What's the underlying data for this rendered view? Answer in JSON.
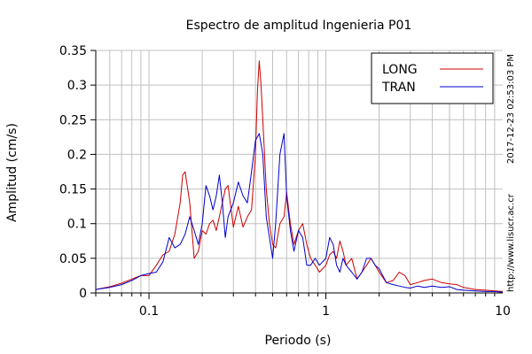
{
  "chart_data": {
    "type": "line",
    "title": "Espectro de amplitud Ingenieria P01",
    "xlabel": "Periodo (s)",
    "ylabel": "Amplitud (cm/s)",
    "xscale": "log",
    "xlim": [
      0.05,
      10
    ],
    "ylim": [
      0,
      0.35
    ],
    "xticks": [
      0.1,
      1,
      10
    ],
    "xtick_labels": [
      "0.1",
      "1",
      "10"
    ],
    "yticks": [
      0,
      0.05,
      0.1,
      0.15,
      0.2,
      0.25,
      0.3,
      0.35
    ],
    "ytick_labels": [
      "0",
      "0.05",
      "0.1",
      "0.15",
      "0.2",
      "0.25",
      "0.3",
      "0.35"
    ],
    "grid": true,
    "legend_position": "top-right",
    "series": [
      {
        "name": "LONG",
        "color": "#cc0000",
        "x": [
          0.05,
          0.06,
          0.07,
          0.08,
          0.09,
          0.1,
          0.11,
          0.12,
          0.13,
          0.14,
          0.15,
          0.155,
          0.16,
          0.17,
          0.18,
          0.19,
          0.2,
          0.21,
          0.22,
          0.23,
          0.24,
          0.25,
          0.26,
          0.27,
          0.28,
          0.3,
          0.32,
          0.34,
          0.36,
          0.38,
          0.4,
          0.41,
          0.42,
          0.43,
          0.44,
          0.46,
          0.48,
          0.5,
          0.52,
          0.55,
          0.58,
          0.6,
          0.63,
          0.66,
          0.7,
          0.74,
          0.78,
          0.82,
          0.87,
          0.92,
          1.0,
          1.05,
          1.1,
          1.15,
          1.2,
          1.25,
          1.3,
          1.4,
          1.5,
          1.6,
          1.7,
          1.8,
          1.9,
          2.0,
          2.2,
          2.4,
          2.6,
          2.8,
          3.0,
          3.3,
          3.6,
          4.0,
          4.5,
          5.0,
          5.5,
          6.0,
          7.0,
          8.0,
          9.0,
          10.0
        ],
        "y": [
          0.005,
          0.009,
          0.014,
          0.02,
          0.025,
          0.025,
          0.04,
          0.055,
          0.06,
          0.085,
          0.13,
          0.17,
          0.175,
          0.13,
          0.05,
          0.06,
          0.09,
          0.085,
          0.1,
          0.105,
          0.09,
          0.11,
          0.13,
          0.15,
          0.155,
          0.095,
          0.125,
          0.095,
          0.11,
          0.12,
          0.2,
          0.29,
          0.335,
          0.3,
          0.25,
          0.15,
          0.1,
          0.07,
          0.065,
          0.1,
          0.11,
          0.145,
          0.1,
          0.07,
          0.09,
          0.1,
          0.07,
          0.05,
          0.04,
          0.03,
          0.04,
          0.055,
          0.06,
          0.05,
          0.075,
          0.06,
          0.04,
          0.05,
          0.02,
          0.03,
          0.04,
          0.05,
          0.04,
          0.03,
          0.015,
          0.018,
          0.03,
          0.025,
          0.012,
          0.015,
          0.018,
          0.02,
          0.015,
          0.013,
          0.012,
          0.008,
          0.005,
          0.004,
          0.003,
          0.002
        ]
      },
      {
        "name": "TRAN",
        "color": "#0000cc",
        "x": [
          0.05,
          0.06,
          0.07,
          0.08,
          0.09,
          0.1,
          0.11,
          0.12,
          0.13,
          0.14,
          0.15,
          0.16,
          0.17,
          0.18,
          0.19,
          0.2,
          0.21,
          0.22,
          0.23,
          0.24,
          0.25,
          0.26,
          0.27,
          0.28,
          0.3,
          0.32,
          0.34,
          0.36,
          0.38,
          0.4,
          0.42,
          0.44,
          0.46,
          0.48,
          0.5,
          0.52,
          0.55,
          0.58,
          0.6,
          0.63,
          0.66,
          0.7,
          0.74,
          0.78,
          0.82,
          0.87,
          0.92,
          1.0,
          1.05,
          1.1,
          1.15,
          1.2,
          1.25,
          1.3,
          1.4,
          1.5,
          1.6,
          1.7,
          1.8,
          1.9,
          2.0,
          2.2,
          2.4,
          2.6,
          2.8,
          3.0,
          3.3,
          3.6,
          4.0,
          4.5,
          5.0,
          5.5,
          6.0,
          7.0,
          8.0,
          9.0,
          10.0
        ],
        "y": [
          0.005,
          0.008,
          0.012,
          0.018,
          0.025,
          0.028,
          0.03,
          0.045,
          0.08,
          0.065,
          0.07,
          0.085,
          0.11,
          0.09,
          0.07,
          0.1,
          0.155,
          0.14,
          0.12,
          0.14,
          0.17,
          0.13,
          0.08,
          0.11,
          0.13,
          0.16,
          0.14,
          0.13,
          0.175,
          0.22,
          0.23,
          0.2,
          0.11,
          0.08,
          0.05,
          0.1,
          0.2,
          0.23,
          0.14,
          0.09,
          0.06,
          0.09,
          0.08,
          0.04,
          0.04,
          0.05,
          0.04,
          0.05,
          0.08,
          0.07,
          0.04,
          0.03,
          0.05,
          0.04,
          0.03,
          0.02,
          0.03,
          0.05,
          0.05,
          0.04,
          0.035,
          0.015,
          0.012,
          0.01,
          0.008,
          0.007,
          0.01,
          0.008,
          0.01,
          0.008,
          0.009,
          0.005,
          0.004,
          0.003,
          0.002,
          0.002,
          0.001
        ]
      }
    ]
  },
  "side_labels": {
    "timestamp": "2017-12-23 02:53:03 PM",
    "url": "http://www.lisucr.ac.cr"
  }
}
